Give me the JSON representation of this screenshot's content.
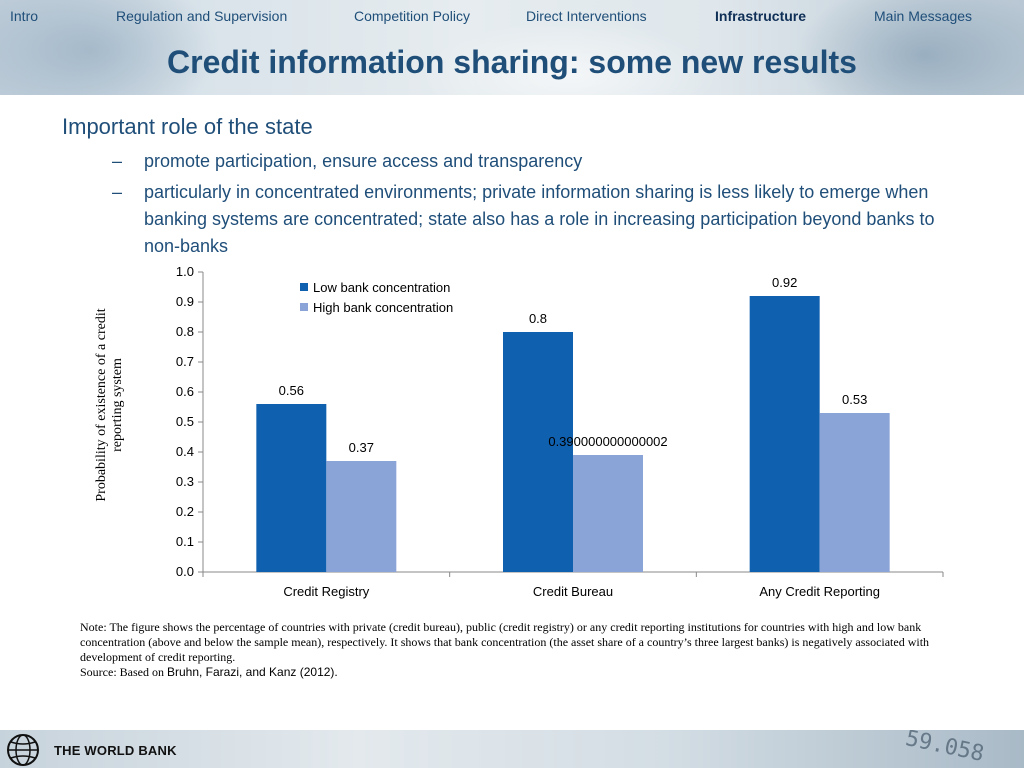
{
  "nav": {
    "items": [
      {
        "label": "Intro",
        "active": false
      },
      {
        "label": "Regulation  and Supervision",
        "active": false
      },
      {
        "label": "Competition Policy",
        "active": false
      },
      {
        "label": "Direct Interventions",
        "active": false
      },
      {
        "label": "Infrastructure",
        "active": true
      },
      {
        "label": "Main Messages",
        "active": false
      }
    ]
  },
  "title": "Credit information sharing: some new results",
  "bullets": {
    "main": "Important role of the state",
    "dash": "–",
    "sub": [
      "promote participation, ensure access and transparency",
      "particularly in concentrated environments; private information sharing is less likely to emerge when banking systems are concentrated; state also has a role in increasing participation beyond banks to non-banks"
    ]
  },
  "chart_data": {
    "type": "bar",
    "title": "",
    "xlabel": "",
    "ylabel": "Probability of existence of a credit reporting system",
    "categories": [
      "Credit Registry",
      "Credit Bureau",
      "Any Credit Reporting"
    ],
    "series": [
      {
        "name": "Low bank concentration",
        "color": "#1060b0",
        "values": [
          0.56,
          0.8,
          0.92
        ],
        "labels": [
          "0.56",
          "0.8",
          "0.92"
        ]
      },
      {
        "name": "High bank concentration",
        "color": "#8aa4d8",
        "values": [
          0.37,
          0.39,
          0.53
        ],
        "labels": [
          "0.37",
          "0.390000000000002",
          "0.53"
        ]
      }
    ],
    "ylim": [
      0,
      1.0
    ],
    "yticks": [
      "0.0",
      "0.1",
      "0.2",
      "0.3",
      "0.4",
      "0.5",
      "0.6",
      "0.7",
      "0.8",
      "0.9",
      "1.0"
    ],
    "grid": false,
    "legend_position": "top-left"
  },
  "note": {
    "text": "Note: The figure shows the percentage of countries with private (credit bureau), public (credit registry) or any credit reporting institutions for countries with high and low bank concentration (above and below the sample mean), respectively. It shows that bank concentration (the asset share of a country’s three largest banks) is negatively associated with development of credit reporting.",
    "source_prefix": "Source: Based on",
    "source_citation": "Bruhn,  Farazi, and Kanz (2012)."
  },
  "footer": {
    "logo_text": "THE WORLD BANK",
    "background_number": "59.058"
  }
}
